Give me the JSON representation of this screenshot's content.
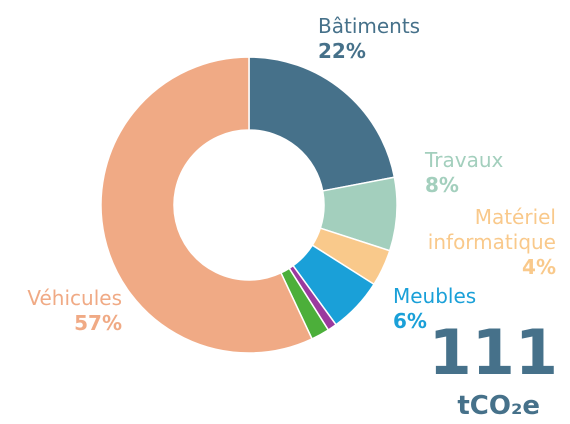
{
  "chart_data": {
    "type": "donut",
    "categories": [
      "Bâtiments",
      "Travaux",
      "Matériel informatique",
      "Meubles",
      null,
      null,
      "Véhicules"
    ],
    "values": [
      22,
      8,
      4,
      6,
      1,
      2,
      57
    ],
    "value_labels": [
      "22%",
      "8%",
      "4%",
      "6%",
      null,
      null,
      "57%"
    ],
    "colors": [
      "#46718a",
      "#a3cfbd",
      "#f9c98b",
      "#1aa0d8",
      "#9b3a9e",
      "#4caf3a",
      "#f0aa85"
    ],
    "annotations": {
      "total": "111",
      "unit": "tCO₂e"
    }
  }
}
